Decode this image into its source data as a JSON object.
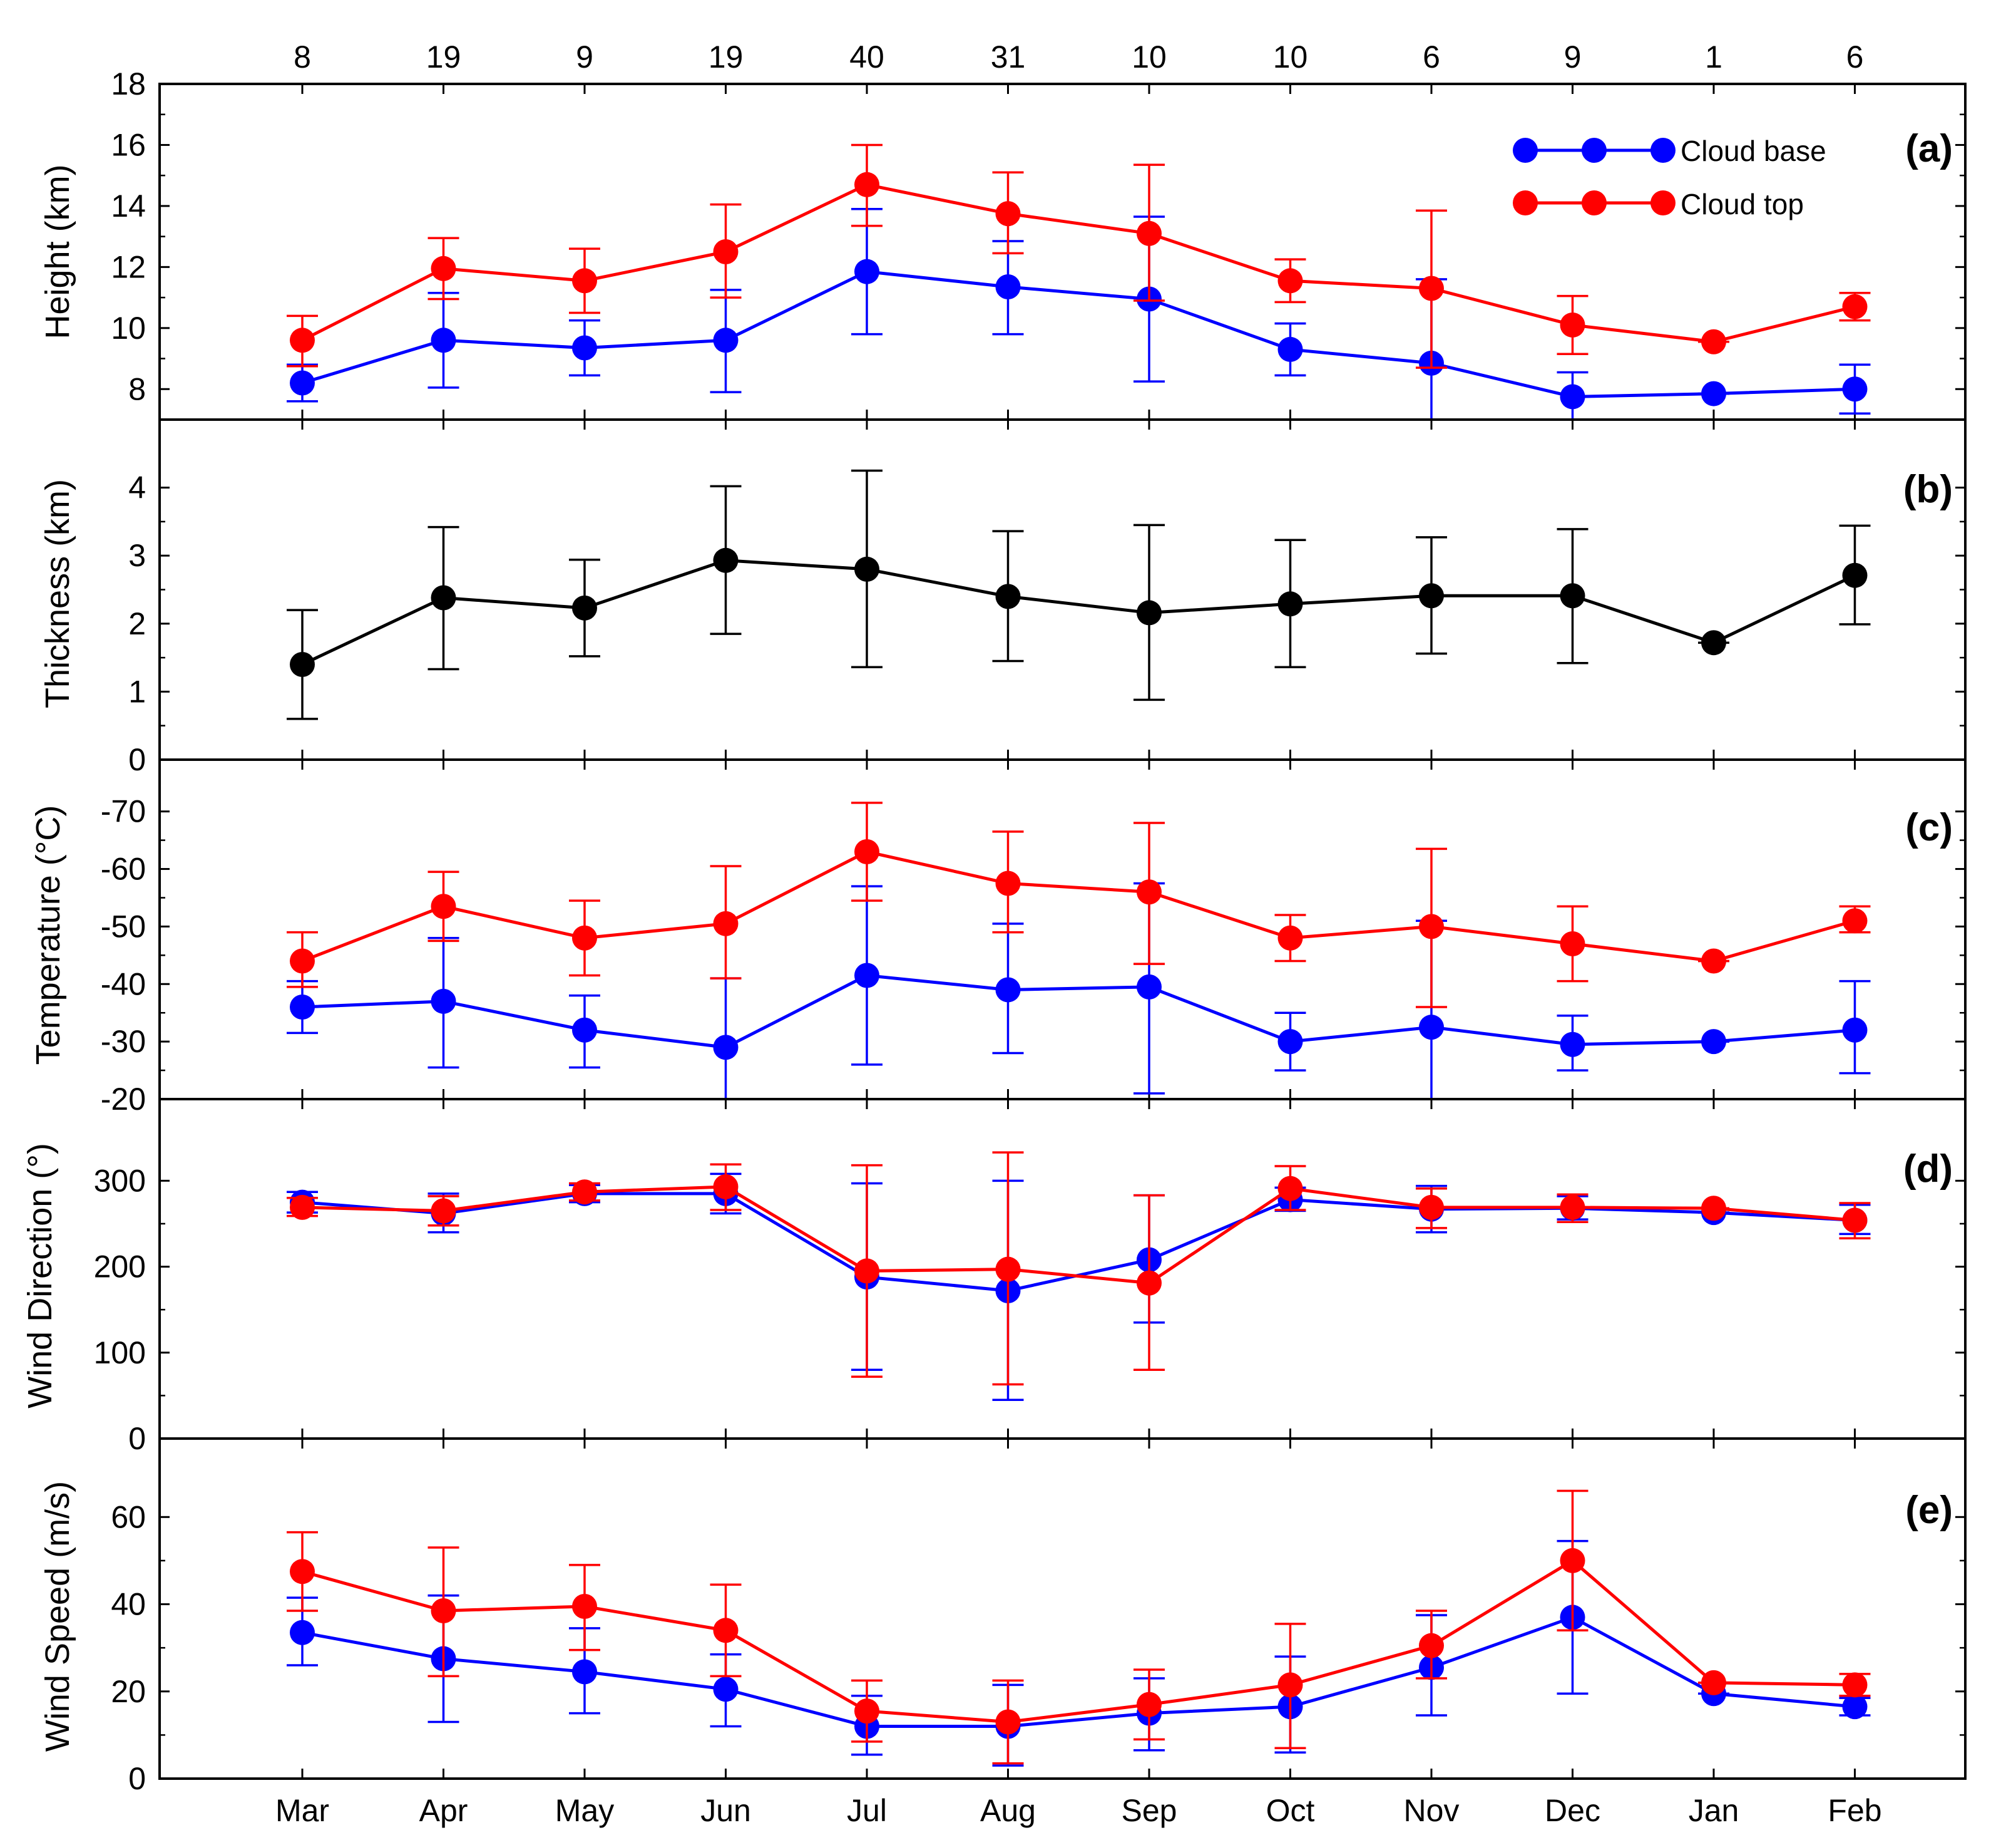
{
  "chart_data": {
    "type": "line",
    "months": [
      "Mar",
      "Apr",
      "May",
      "Jun",
      "Jul",
      "Aug",
      "Sep",
      "Oct",
      "Nov",
      "Dec",
      "Jan",
      "Feb"
    ],
    "counts": [
      "8",
      "19",
      "9",
      "19",
      "40",
      "31",
      "10",
      "10",
      "6",
      "9",
      "1",
      "6"
    ],
    "legend": {
      "base": "Cloud base",
      "top": "Cloud top"
    },
    "colors": {
      "base": "#0000ff",
      "top": "#ff0000",
      "thickness": "#000000"
    },
    "panels": [
      {
        "key": "a",
        "label": "(a)",
        "ylabel": "Height (km)",
        "ylim": [
          7,
          18
        ],
        "yticks": [
          8,
          10,
          12,
          14,
          16,
          18
        ],
        "legend": true,
        "series": [
          {
            "name": "Cloud base",
            "color": "base",
            "values": [
              8.2,
              9.6,
              9.35,
              9.6,
              11.85,
              11.35,
              10.95,
              9.3,
              8.85,
              7.75,
              7.85,
              8.0
            ],
            "err_low": [
              7.6,
              8.05,
              8.45,
              7.9,
              9.8,
              9.8,
              8.25,
              8.45,
              7.0,
              7.0,
              7.85,
              7.2
            ],
            "err_high": [
              8.8,
              11.15,
              10.25,
              11.25,
              13.9,
              12.85,
              13.65,
              10.15,
              11.6,
              8.55,
              7.85,
              8.8
            ]
          },
          {
            "name": "Cloud top",
            "color": "top",
            "values": [
              9.6,
              11.95,
              11.55,
              12.5,
              14.7,
              13.75,
              13.1,
              11.55,
              11.3,
              10.1,
              9.55,
              10.7
            ],
            "err_low": [
              8.75,
              10.95,
              10.5,
              11.0,
              13.35,
              12.45,
              10.9,
              10.85,
              8.7,
              9.15,
              9.55,
              10.25
            ],
            "err_high": [
              10.4,
              12.95,
              12.6,
              14.05,
              16.0,
              15.1,
              15.35,
              12.25,
              13.85,
              11.05,
              9.55,
              11.15
            ]
          }
        ]
      },
      {
        "key": "b",
        "label": "(b)",
        "ylabel": "Thickness (km)",
        "ylim": [
          0,
          5
        ],
        "yticks": [
          0,
          1,
          2,
          3,
          4
        ],
        "legend": false,
        "series": [
          {
            "name": "Thickness",
            "color": "thickness",
            "values": [
              1.4,
              2.38,
              2.23,
              2.93,
              2.8,
              2.4,
              2.16,
              2.29,
              2.41,
              2.41,
              1.72,
              2.71
            ],
            "err_low": [
              0.6,
              1.33,
              1.52,
              1.85,
              1.36,
              1.45,
              0.88,
              1.36,
              1.56,
              1.42,
              1.72,
              1.99
            ],
            "err_high": [
              2.2,
              3.42,
              2.94,
              4.02,
              4.25,
              3.36,
              3.45,
              3.23,
              3.27,
              3.39,
              1.72,
              3.44
            ]
          }
        ]
      },
      {
        "key": "c",
        "label": "(c)",
        "ylabel": "Temperature (°C)",
        "ylim": [
          -20,
          -79
        ],
        "yticks": [
          -20,
          -30,
          -40,
          -50,
          -60,
          -70
        ],
        "legend": false,
        "series": [
          {
            "name": "Cloud base",
            "color": "base",
            "values": [
              -36,
              -37,
              -32,
              -29,
              -41.5,
              -39,
              -39.5,
              -30,
              -32.5,
              -29.5,
              -30,
              -32
            ],
            "err_low": [
              -31.5,
              -25.5,
              -25.5,
              -20,
              -26,
              -28,
              -21,
              -25,
              -20,
              -25,
              -30,
              -24.5
            ],
            "err_high": [
              -40.5,
              -48,
              -38,
              -41,
              -57,
              -50.5,
              -57.5,
              -35,
              -51,
              -34.5,
              -30,
              -40.5
            ]
          },
          {
            "name": "Cloud top",
            "color": "top",
            "values": [
              -44,
              -53.5,
              -48,
              -50.5,
              -63,
              -57.5,
              -56,
              -48,
              -50,
              -47,
              -44,
              -51
            ],
            "err_low": [
              -39.5,
              -47.5,
              -41.5,
              -41,
              -54.5,
              -49,
              -43.5,
              -44,
              -36,
              -40.5,
              -44,
              -49
            ],
            "err_high": [
              -49,
              -59.5,
              -54.5,
              -60.5,
              -71.5,
              -66.5,
              -68,
              -52,
              -63.5,
              -53.5,
              -44,
              -53.5
            ]
          }
        ]
      },
      {
        "key": "d",
        "label": "(d)",
        "ylabel": "Wind Direction (°)",
        "ylim": [
          0,
          395
        ],
        "yticks": [
          0,
          100,
          200,
          300
        ],
        "legend": false,
        "series": [
          {
            "name": "Cloud base",
            "color": "base",
            "values": [
              275,
              262,
              285,
              285,
              188,
              172,
              208,
              278,
              267,
              268,
              263,
              254
            ],
            "err_low": [
              263,
              240,
              275,
              262,
              80,
              45,
              135,
              265,
              240,
              255,
              263,
              238
            ],
            "err_high": [
              287,
              285,
              295,
              308,
              297,
              300,
              283,
              292,
              294,
              282,
              263,
              272
            ]
          },
          {
            "name": "Cloud top",
            "color": "top",
            "values": [
              269,
              265,
              287,
              293,
              195,
              197,
              181,
              291,
              269,
              269,
              268,
              254
            ],
            "err_low": [
              259,
              248,
              277,
              266,
              72,
              63,
              80,
              266,
              245,
              252,
              268,
              233
            ],
            "err_high": [
              280,
              282,
              297,
              319,
              318,
              333,
              283,
              317,
              291,
              284,
              268,
              274
            ]
          }
        ]
      },
      {
        "key": "e",
        "label": "(e)",
        "ylabel": "Wind Speed (m/s)",
        "ylim": [
          0,
          78
        ],
        "yticks": [
          0,
          20,
          40,
          60
        ],
        "legend": false,
        "series": [
          {
            "name": "Cloud base",
            "color": "base",
            "values": [
              33.5,
              27.5,
              24.5,
              20.5,
              12,
              12,
              15,
              16.5,
              25.5,
              37,
              19.5,
              16.5
            ],
            "err_low": [
              26,
              13,
              15,
              12,
              5.5,
              3,
              6.5,
              6,
              14.5,
              19.5,
              19.5,
              14.5
            ],
            "err_high": [
              41.5,
              42,
              34.5,
              28.5,
              19,
              21.5,
              23,
              28,
              37.5,
              54.5,
              19.5,
              18.5
            ]
          },
          {
            "name": "Cloud top",
            "color": "top",
            "values": [
              47.5,
              38.5,
              39.5,
              34,
              15.5,
              13,
              17,
              21.5,
              30.5,
              50,
              22,
              21.5
            ],
            "err_low": [
              38.5,
              23.5,
              29.5,
              23.5,
              8.5,
              3.5,
              9,
              7,
              23,
              34,
              22,
              19
            ],
            "err_high": [
              56.5,
              53,
              49,
              44.5,
              22.5,
              22.5,
              25,
              35.5,
              38.5,
              66,
              22,
              24
            ]
          }
        ]
      }
    ]
  }
}
